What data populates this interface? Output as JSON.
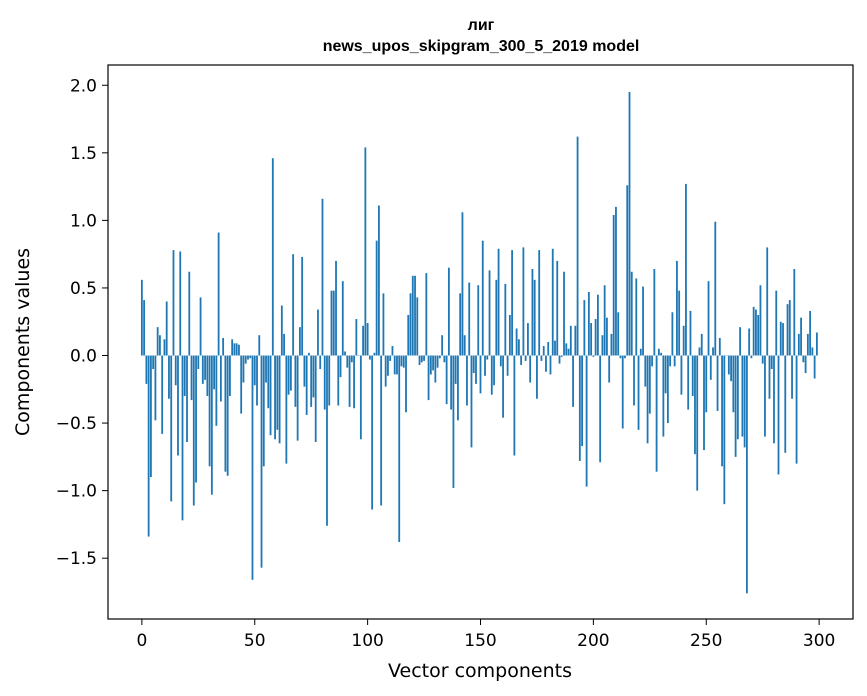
{
  "chart_data": {
    "type": "bar",
    "title": "лиг",
    "subtitle": "news_upos_skipgram_300_5_2019 model",
    "xlabel": "Vector components",
    "ylabel": "Components values",
    "xlim": [
      -15,
      315
    ],
    "ylim": [
      -1.95,
      2.15
    ],
    "xticks": [
      0,
      50,
      100,
      150,
      200,
      250,
      300
    ],
    "yticks": [
      -1.5,
      -1.0,
      -0.5,
      0.0,
      0.5,
      1.0,
      1.5,
      2.0
    ],
    "bar_color": "#1f77b4",
    "x_start": 0,
    "values": [
      0.56,
      0.41,
      -0.21,
      -1.34,
      -0.9,
      -0.1,
      -0.48,
      0.21,
      0.15,
      -0.58,
      0.12,
      0.4,
      -0.32,
      -1.08,
      0.78,
      -0.22,
      -0.74,
      0.77,
      -1.22,
      -0.3,
      -0.64,
      0.62,
      -0.33,
      -1.11,
      -0.94,
      -0.1,
      0.43,
      -0.21,
      -0.18,
      -0.3,
      -0.82,
      -1.03,
      -0.25,
      -0.52,
      0.91,
      -0.34,
      0.13,
      -0.86,
      -0.89,
      -0.3,
      0.12,
      0.09,
      0.09,
      0.08,
      -0.43,
      -0.2,
      -0.06,
      -0.03,
      -0.02,
      -1.66,
      -0.22,
      -0.37,
      0.15,
      -1.57,
      -0.82,
      -0.2,
      -0.39,
      -0.59,
      1.46,
      -0.62,
      -0.55,
      -0.65,
      0.37,
      0.16,
      -0.8,
      -0.29,
      -0.26,
      0.75,
      -0.38,
      -0.63,
      0.21,
      0.73,
      -0.23,
      -0.44,
      0.02,
      -0.38,
      -0.31,
      -0.64,
      0.34,
      -0.1,
      1.16,
      -0.4,
      -1.26,
      -0.37,
      0.48,
      0.48,
      0.7,
      -0.37,
      -0.16,
      0.55,
      0.03,
      -0.09,
      -0.38,
      -0.05,
      -0.39,
      0.27,
      0.0,
      -0.62,
      0.22,
      1.54,
      0.24,
      -0.03,
      -1.14,
      0.02,
      0.85,
      1.11,
      -1.11,
      0.46,
      -0.23,
      -0.15,
      -0.04,
      0.07,
      -0.14,
      -0.14,
      -1.38,
      -0.08,
      -0.09,
      -0.42,
      0.3,
      0.46,
      0.59,
      0.59,
      0.43,
      -0.07,
      -0.05,
      -0.04,
      0.61,
      -0.33,
      -0.14,
      -0.11,
      -0.2,
      -0.09,
      -0.02,
      0.15,
      -0.05,
      -0.36,
      0.65,
      -0.4,
      -0.98,
      -0.21,
      -0.48,
      0.46,
      1.06,
      0.15,
      -0.37,
      0.54,
      -0.68,
      -0.13,
      -0.21,
      0.52,
      -0.28,
      0.85,
      -0.15,
      -0.03,
      0.63,
      -0.29,
      -0.22,
      0.56,
      0.79,
      -0.08,
      -0.46,
      0.53,
      -0.15,
      0.3,
      0.78,
      -0.74,
      0.2,
      0.12,
      -0.07,
      0.8,
      -0.04,
      0.24,
      -0.2,
      0.64,
      0.56,
      -0.32,
      0.78,
      -0.04,
      0.07,
      -0.12,
      0.1,
      -0.14,
      0.79,
      0.11,
      0.7,
      -0.06,
      -0.01,
      0.62,
      0.09,
      0.05,
      0.22,
      -0.38,
      0.22,
      1.62,
      -0.78,
      -0.67,
      0.41,
      -0.97,
      0.47,
      0.24,
      -0.01,
      0.27,
      0.45,
      -0.79,
      0.15,
      0.52,
      0.28,
      -0.2,
      0.16,
      1.04,
      1.1,
      0.32,
      -0.02,
      -0.54,
      -0.02,
      1.26,
      1.95,
      0.62,
      -0.37,
      0.57,
      -0.55,
      0.05,
      0.51,
      -0.23,
      -0.65,
      -0.43,
      -0.08,
      0.64,
      -0.86,
      0.05,
      0.02,
      -0.6,
      -0.28,
      -0.5,
      -0.08,
      0.32,
      -0.08,
      0.7,
      0.48,
      -0.29,
      0.22,
      1.27,
      -0.4,
      0.33,
      -0.3,
      -0.73,
      -1.0,
      0.06,
      0.16,
      -0.7,
      -0.42,
      0.55,
      -0.18,
      0.06,
      0.99,
      -0.41,
      0.13,
      -0.82,
      -1.1,
      0.0,
      -0.14,
      -0.19,
      -0.42,
      -0.75,
      -0.62,
      0.21,
      -0.6,
      -0.68,
      -1.76,
      0.2,
      -0.02,
      0.36,
      0.34,
      0.3,
      0.52,
      -0.06,
      -0.6,
      0.8,
      -0.32,
      -0.1,
      -0.65,
      0.48,
      -0.88,
      0.25,
      0.24,
      -0.72,
      0.38,
      0.41,
      -0.32,
      0.64,
      -0.8,
      0.16,
      0.28,
      -0.05,
      -0.13,
      0.16,
      0.33,
      0.06,
      -0.17,
      0.17
    ]
  }
}
